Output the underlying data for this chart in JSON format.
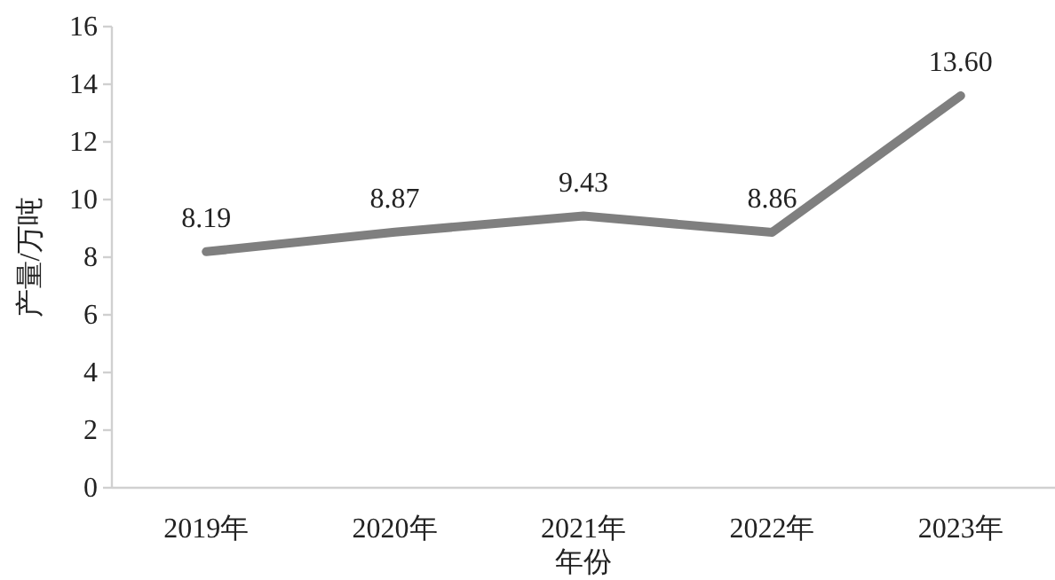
{
  "chart_data": {
    "type": "line",
    "xlabel": "年份",
    "ylabel": "产量/万吨",
    "categories": [
      "2019年",
      "2020年",
      "2021年",
      "2022年",
      "2023年"
    ],
    "series": [
      {
        "color": "#7f7f7f",
        "values": [
          8.19,
          8.87,
          9.43,
          8.86,
          13.6
        ],
        "value_labels": [
          "8.19",
          "8.87",
          "9.43",
          "8.86",
          "13.60"
        ]
      }
    ],
    "ylim": [
      0,
      16
    ],
    "yticks": [
      0,
      2,
      4,
      6,
      8,
      10,
      12,
      14,
      16
    ]
  }
}
